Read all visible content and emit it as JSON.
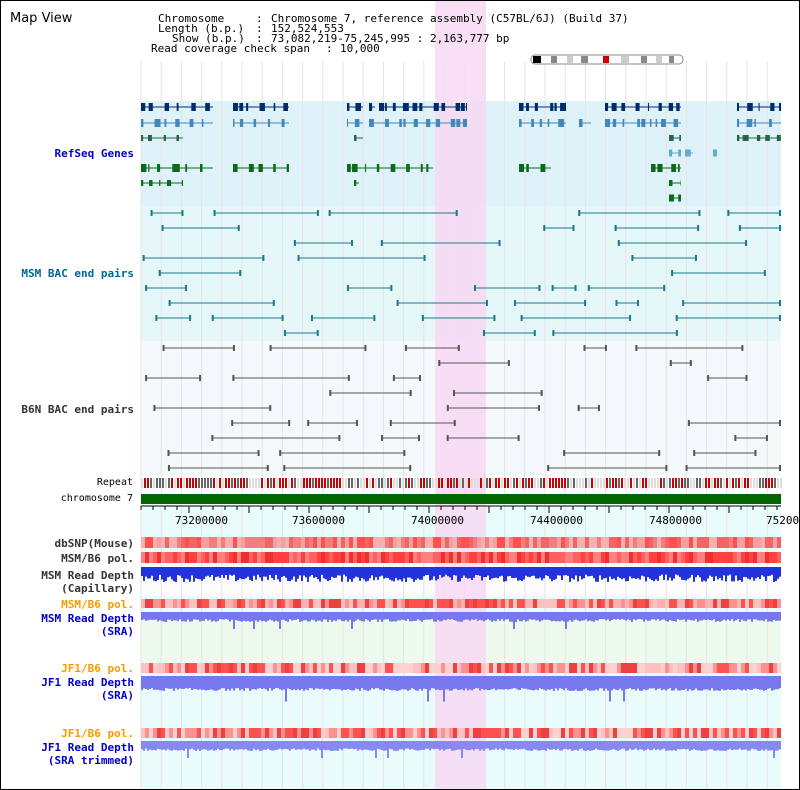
{
  "title": "Map View",
  "header": {
    "chromosome_label": "Chromosome",
    "chromosome_value": "Chromosome 7, reference assembly (C57BL/6J) (Build 37)",
    "length_label": "Length (b.p.)",
    "length_value": "152,524,553",
    "show_label": "Show (b.p.)",
    "show_value": "73,082,219-75,245,995 : 2,163,777 bp",
    "coverage_label": "Read coverage check span",
    "coverage_value": "10,000"
  },
  "tracks": {
    "refseq": "RefSeq Genes",
    "msm_bac": "MSM BAC end pairs",
    "b6n_bac": "B6N BAC end pairs",
    "repeat": "Repeat",
    "chromosome": "chromosome 7",
    "dbsnp": "dbSNP(Mouse)",
    "msm_b6_pol_1": "MSM/B6 pol.",
    "msm_read_depth_cap_1": "MSM Read Depth",
    "msm_read_depth_cap_2": "(Capillary)",
    "msm_b6_pol_2": "MSM/B6 pol.",
    "msm_read_depth_sra_1": "MSM Read Depth",
    "msm_read_depth_sra_2": "(SRA)",
    "jf1_b6_pol_1": "JF1/B6 pol.",
    "jf1_read_depth_sra_1": "JF1 Read Depth",
    "jf1_read_depth_sra_2": "(SRA)",
    "jf1_b6_pol_2": "JF1/B6 pol.",
    "jf1_read_depth_trim_1": "JF1 Read Depth",
    "jf1_read_depth_trim_2": "(SRA trimmed)"
  },
  "axis": {
    "ticks": [
      "73200000",
      "73600000",
      "74000000",
      "74400000",
      "74800000",
      "75200"
    ]
  },
  "colors": {
    "label_blue": "#0000cc",
    "label_teal": "#006699",
    "label_gray": "#333333",
    "label_orange": "#ff9900",
    "refseq_bg": "#dff2fa",
    "msm_bac_bg": "#e6f7f9",
    "highlight": "#f7d9f3",
    "chromosome_bar": "#006600"
  }
}
